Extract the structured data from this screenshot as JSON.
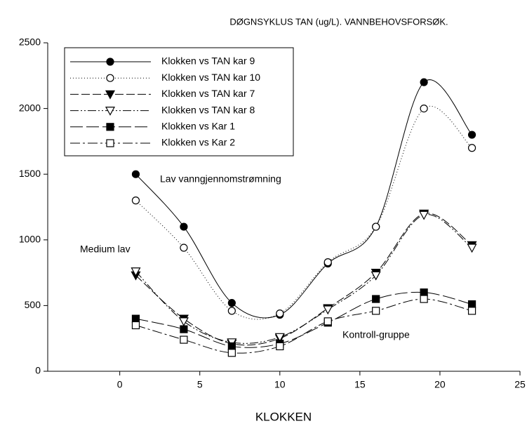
{
  "chart_data": {
    "type": "line",
    "title": "DØGNSYKLUS TAN (ug/L). VANNBEHOVSFORSØK.",
    "x_label": "KLOKKEN",
    "x": [
      1,
      4,
      7,
      10,
      13,
      16,
      19,
      22
    ],
    "xlim": [
      -4.5,
      25
    ],
    "xticks": [
      0,
      5,
      10,
      15,
      20,
      25
    ],
    "ylim": [
      0,
      2500
    ],
    "yticks": [
      0,
      500,
      1000,
      1500,
      2000,
      2500
    ],
    "smooth": true,
    "legend": "upper left",
    "annotations": [
      "Lav vanngjennomstrømning",
      "Medium lav",
      "Kontroll-gruppe"
    ],
    "series": [
      {
        "name": "Klokken vs TAN kar 9",
        "color": "#000000",
        "marker": "circle",
        "filled": true,
        "dash": "none",
        "values": [
          1500,
          1100,
          520,
          430,
          820,
          1100,
          2200,
          1800
        ]
      },
      {
        "name": "Klokken vs TAN kar 10",
        "color": "#000000",
        "marker": "circle",
        "filled": false,
        "dash": "1 3",
        "values": [
          1300,
          940,
          460,
          440,
          830,
          1100,
          2000,
          1700
        ]
      },
      {
        "name": "Klokken vs TAN kar 7",
        "color": "#000000",
        "marker": "triangle",
        "filled": true,
        "dash": "12 4",
        "values": [
          730,
          400,
          210,
          250,
          480,
          750,
          1200,
          960
        ]
      },
      {
        "name": "Klokken vs TAN kar 8",
        "color": "#000000",
        "marker": "triangle",
        "filled": false,
        "dash": "12 3 2 3 2 3",
        "values": [
          760,
          380,
          220,
          260,
          470,
          730,
          1190,
          940
        ]
      },
      {
        "name": "Klokken vs Kar 1",
        "color": "#000000",
        "marker": "square",
        "filled": true,
        "dash": "18 5",
        "values": [
          400,
          320,
          190,
          210,
          370,
          550,
          600,
          510
        ]
      },
      {
        "name": "Klokken vs Kar 2",
        "color": "#000000",
        "marker": "square",
        "filled": false,
        "dash": "14 4 3 4",
        "values": [
          350,
          240,
          140,
          190,
          380,
          460,
          550,
          460
        ]
      }
    ]
  }
}
